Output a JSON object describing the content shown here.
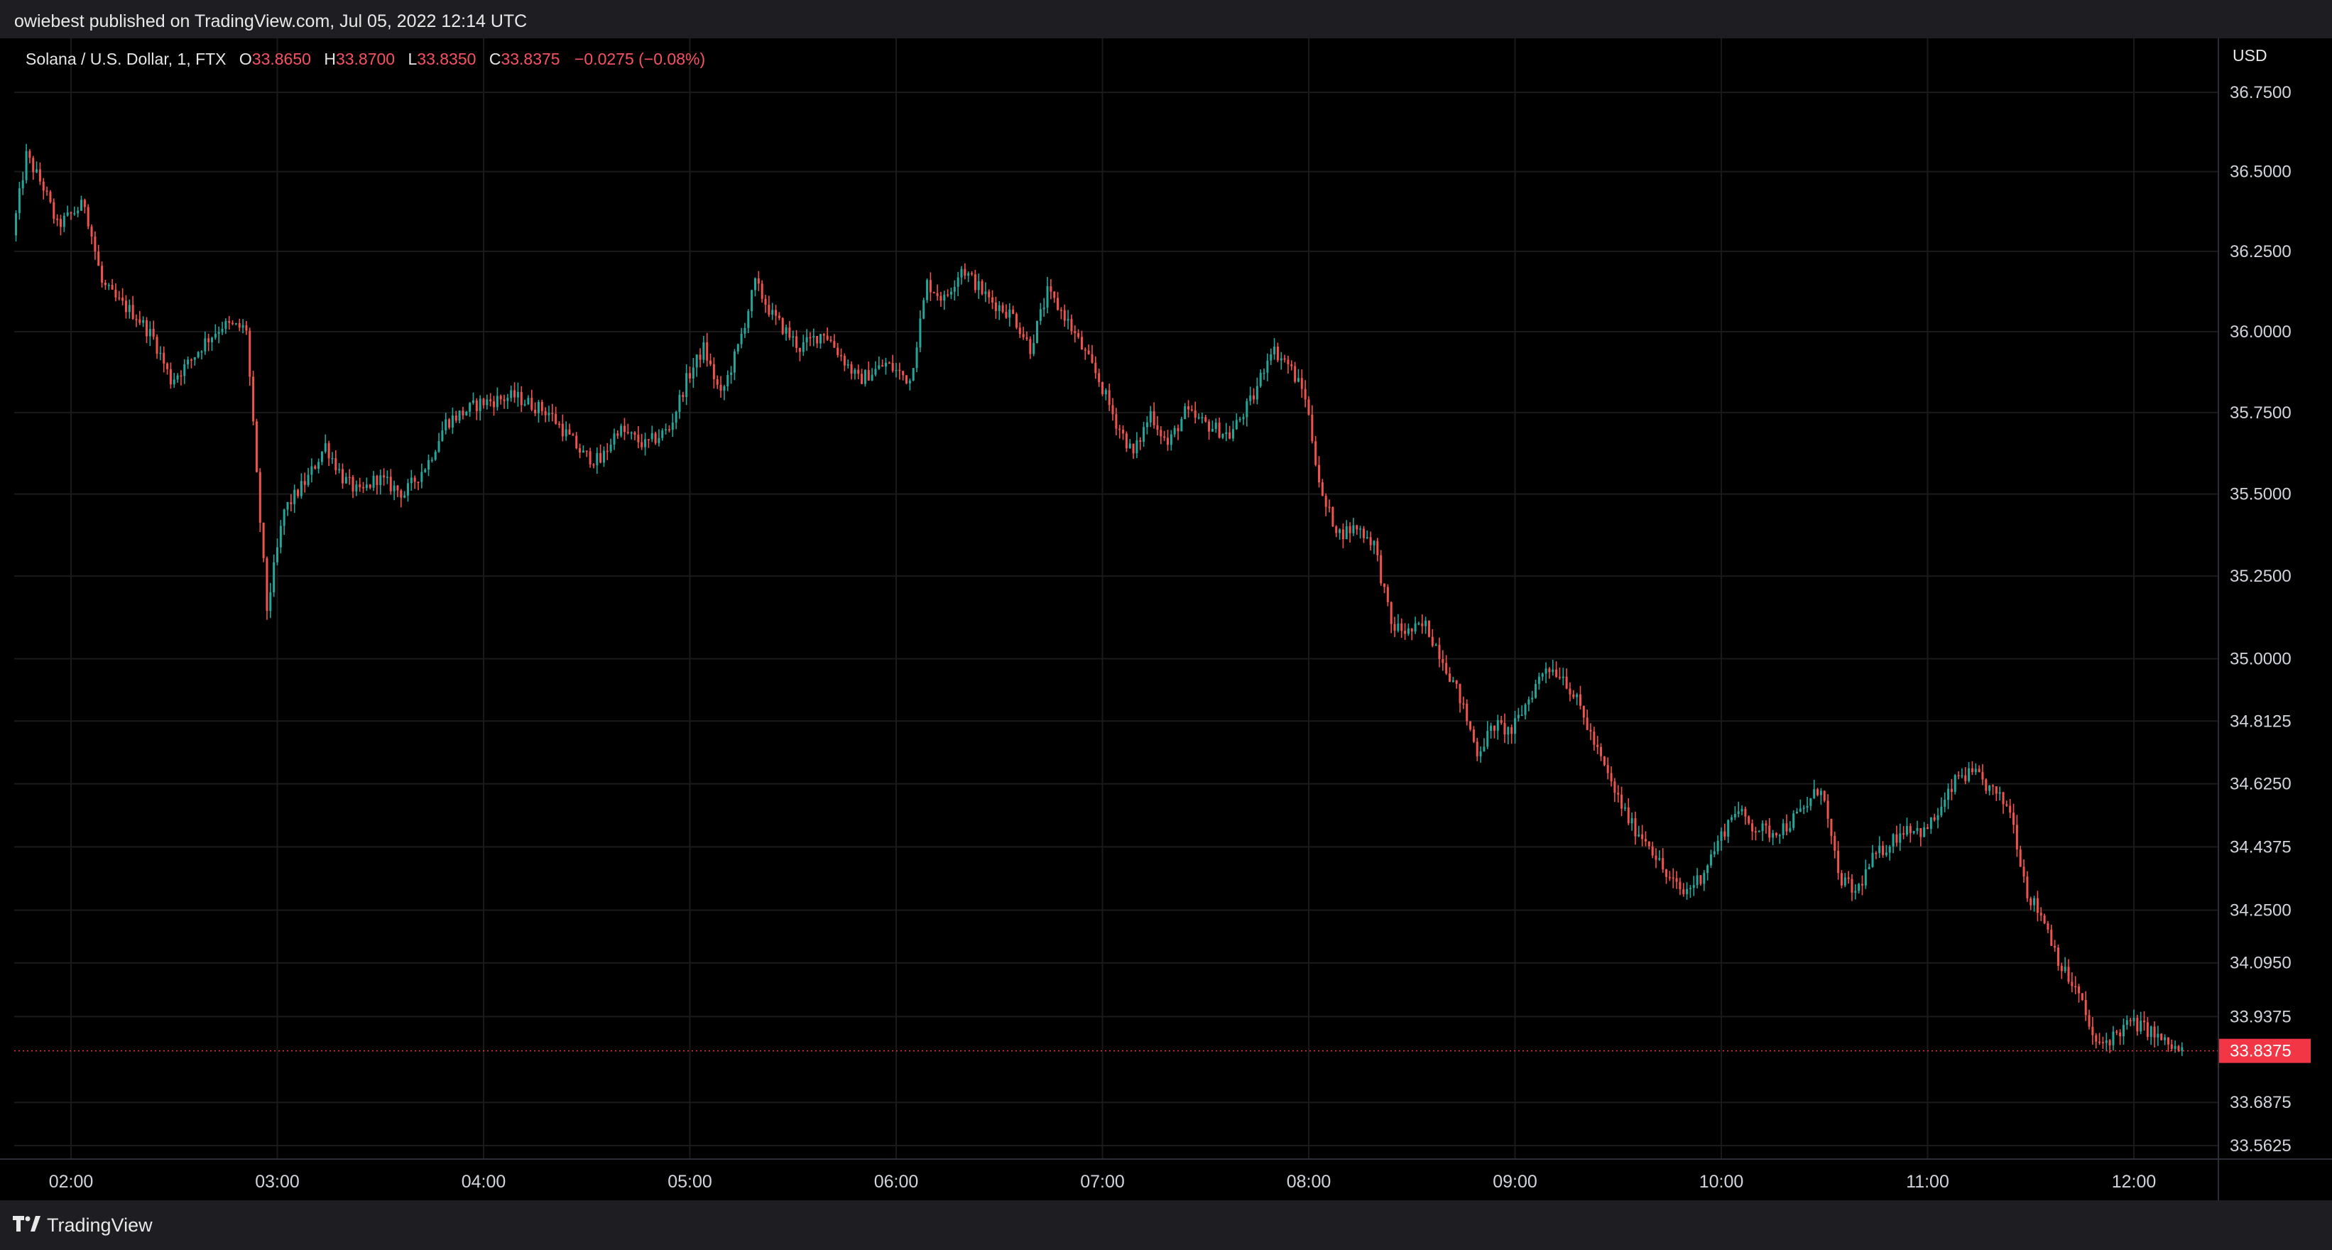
{
  "header": {
    "publish_text": "owiebest published on TradingView.com, Jul 05, 2022 12:14 UTC"
  },
  "legend": {
    "symbol": "Solana / U.S. Dollar, 1, FTX",
    "open_label": "O",
    "open": "33.8650",
    "high_label": "H",
    "high": "33.8700",
    "low_label": "L",
    "low": "33.8350",
    "close_label": "C",
    "close": "33.8375",
    "change": "−0.0275 (−0.08%)"
  },
  "footer": {
    "brand": "TradingView",
    "logo_icon": "tradingview-logo-icon"
  },
  "colors": {
    "up": "#26a69a",
    "down": "#ef5350",
    "background": "#000000",
    "grid": "#1a1a1a",
    "last_price": "#f23645"
  },
  "chart_data": {
    "type": "candlestick",
    "title": "Solana / U.S. Dollar, 1, FTX",
    "currency_label": "USD",
    "x_tick_labels": [
      "02:00",
      "03:00",
      "04:00",
      "05:00",
      "06:00",
      "07:00",
      "08:00",
      "09:00",
      "10:00",
      "11:00",
      "12:00"
    ],
    "y_tick_labels": [
      "36.7500",
      "36.5000",
      "36.2500",
      "36.0000",
      "35.7500",
      "35.5000",
      "35.2500",
      "35.0000",
      "34.8125",
      "34.6250",
      "34.4375",
      "34.2500",
      "34.0950",
      "33.9375",
      "33.6875",
      "33.5625"
    ],
    "y_tick_values": [
      36.75,
      36.5,
      36.25,
      36.0,
      35.75,
      35.5,
      35.25,
      35.0,
      34.8125,
      34.625,
      34.4375,
      34.25,
      34.095,
      33.9375,
      33.6875,
      33.5625
    ],
    "last_price_label": "33.8375",
    "last_price": 33.8375,
    "scale": "log",
    "y_range": [
      33.5,
      36.85
    ],
    "time_range": [
      "01:44",
      "12:14"
    ],
    "grid": true,
    "price_path": [
      [
        "01:44",
        36.3
      ],
      [
        "01:48",
        36.55
      ],
      [
        "01:53",
        36.45
      ],
      [
        "01:57",
        36.33
      ],
      [
        "02:05",
        36.4
      ],
      [
        "02:10",
        36.15
      ],
      [
        "02:14",
        36.1
      ],
      [
        "02:20",
        36.05
      ],
      [
        "02:25",
        35.98
      ],
      [
        "02:30",
        35.85
      ],
      [
        "02:35",
        35.9
      ],
      [
        "02:40",
        35.97
      ],
      [
        "02:45",
        36.02
      ],
      [
        "02:52",
        36.01
      ],
      [
        "02:55",
        35.55
      ],
      [
        "02:58",
        35.15
      ],
      [
        "03:03",
        35.45
      ],
      [
        "03:10",
        35.55
      ],
      [
        "03:15",
        35.65
      ],
      [
        "03:20",
        35.55
      ],
      [
        "03:25",
        35.5
      ],
      [
        "03:30",
        35.55
      ],
      [
        "03:38",
        35.5
      ],
      [
        "03:45",
        35.6
      ],
      [
        "03:50",
        35.72
      ],
      [
        "03:55",
        35.75
      ],
      [
        "04:00",
        35.78
      ],
      [
        "04:10",
        35.8
      ],
      [
        "04:20",
        35.75
      ],
      [
        "04:30",
        35.62
      ],
      [
        "04:35",
        35.6
      ],
      [
        "04:40",
        35.7
      ],
      [
        "04:48",
        35.65
      ],
      [
        "04:55",
        35.7
      ],
      [
        "05:00",
        35.85
      ],
      [
        "05:05",
        35.95
      ],
      [
        "05:10",
        35.8
      ],
      [
        "05:15",
        35.95
      ],
      [
        "05:20",
        36.15
      ],
      [
        "05:25",
        36.05
      ],
      [
        "05:33",
        35.95
      ],
      [
        "05:40",
        36.0
      ],
      [
        "05:50",
        35.85
      ],
      [
        "05:58",
        35.9
      ],
      [
        "06:05",
        35.85
      ],
      [
        "06:10",
        36.15
      ],
      [
        "06:15",
        36.1
      ],
      [
        "06:20",
        36.2
      ],
      [
        "06:28",
        36.1
      ],
      [
        "06:35",
        36.05
      ],
      [
        "06:40",
        35.95
      ],
      [
        "06:45",
        36.12
      ],
      [
        "06:50",
        36.05
      ],
      [
        "06:55",
        35.95
      ],
      [
        "07:00",
        35.85
      ],
      [
        "07:05",
        35.72
      ],
      [
        "07:10",
        35.62
      ],
      [
        "07:15",
        35.75
      ],
      [
        "07:20",
        35.65
      ],
      [
        "07:25",
        35.75
      ],
      [
        "07:30",
        35.72
      ],
      [
        "07:38",
        35.68
      ],
      [
        "07:45",
        35.8
      ],
      [
        "07:50",
        35.95
      ],
      [
        "07:55",
        35.9
      ],
      [
        "08:00",
        35.8
      ],
      [
        "08:05",
        35.48
      ],
      [
        "08:10",
        35.38
      ],
      [
        "08:15",
        35.4
      ],
      [
        "08:20",
        35.35
      ],
      [
        "08:25",
        35.1
      ],
      [
        "08:30",
        35.08
      ],
      [
        "08:35",
        35.1
      ],
      [
        "08:40",
        35.0
      ],
      [
        "08:45",
        34.88
      ],
      [
        "08:50",
        34.72
      ],
      [
        "08:55",
        34.8
      ],
      [
        "09:00",
        34.78
      ],
      [
        "09:05",
        34.88
      ],
      [
        "09:10",
        34.98
      ],
      [
        "09:15",
        34.95
      ],
      [
        "09:20",
        34.85
      ],
      [
        "09:25",
        34.72
      ],
      [
        "09:30",
        34.6
      ],
      [
        "09:35",
        34.5
      ],
      [
        "09:40",
        34.45
      ],
      [
        "09:45",
        34.35
      ],
      [
        "09:50",
        34.3
      ],
      [
        "09:55",
        34.35
      ],
      [
        "10:00",
        34.45
      ],
      [
        "10:05",
        34.55
      ],
      [
        "10:10",
        34.5
      ],
      [
        "10:15",
        34.48
      ],
      [
        "10:20",
        34.5
      ],
      [
        "10:25",
        34.55
      ],
      [
        "10:30",
        34.62
      ],
      [
        "10:35",
        34.35
      ],
      [
        "10:40",
        34.3
      ],
      [
        "10:45",
        34.4
      ],
      [
        "10:50",
        34.45
      ],
      [
        "10:55",
        34.5
      ],
      [
        "11:00",
        34.48
      ],
      [
        "11:05",
        34.55
      ],
      [
        "11:10",
        34.65
      ],
      [
        "11:15",
        34.65
      ],
      [
        "11:20",
        34.6
      ],
      [
        "11:25",
        34.55
      ],
      [
        "11:30",
        34.3
      ],
      [
        "11:35",
        34.22
      ],
      [
        "11:40",
        34.08
      ],
      [
        "11:45",
        34.0
      ],
      [
        "11:50",
        33.85
      ],
      [
        "11:55",
        33.88
      ],
      [
        "12:00",
        33.92
      ],
      [
        "12:05",
        33.9
      ],
      [
        "12:10",
        33.86
      ],
      [
        "12:14",
        33.8375
      ]
    ]
  }
}
